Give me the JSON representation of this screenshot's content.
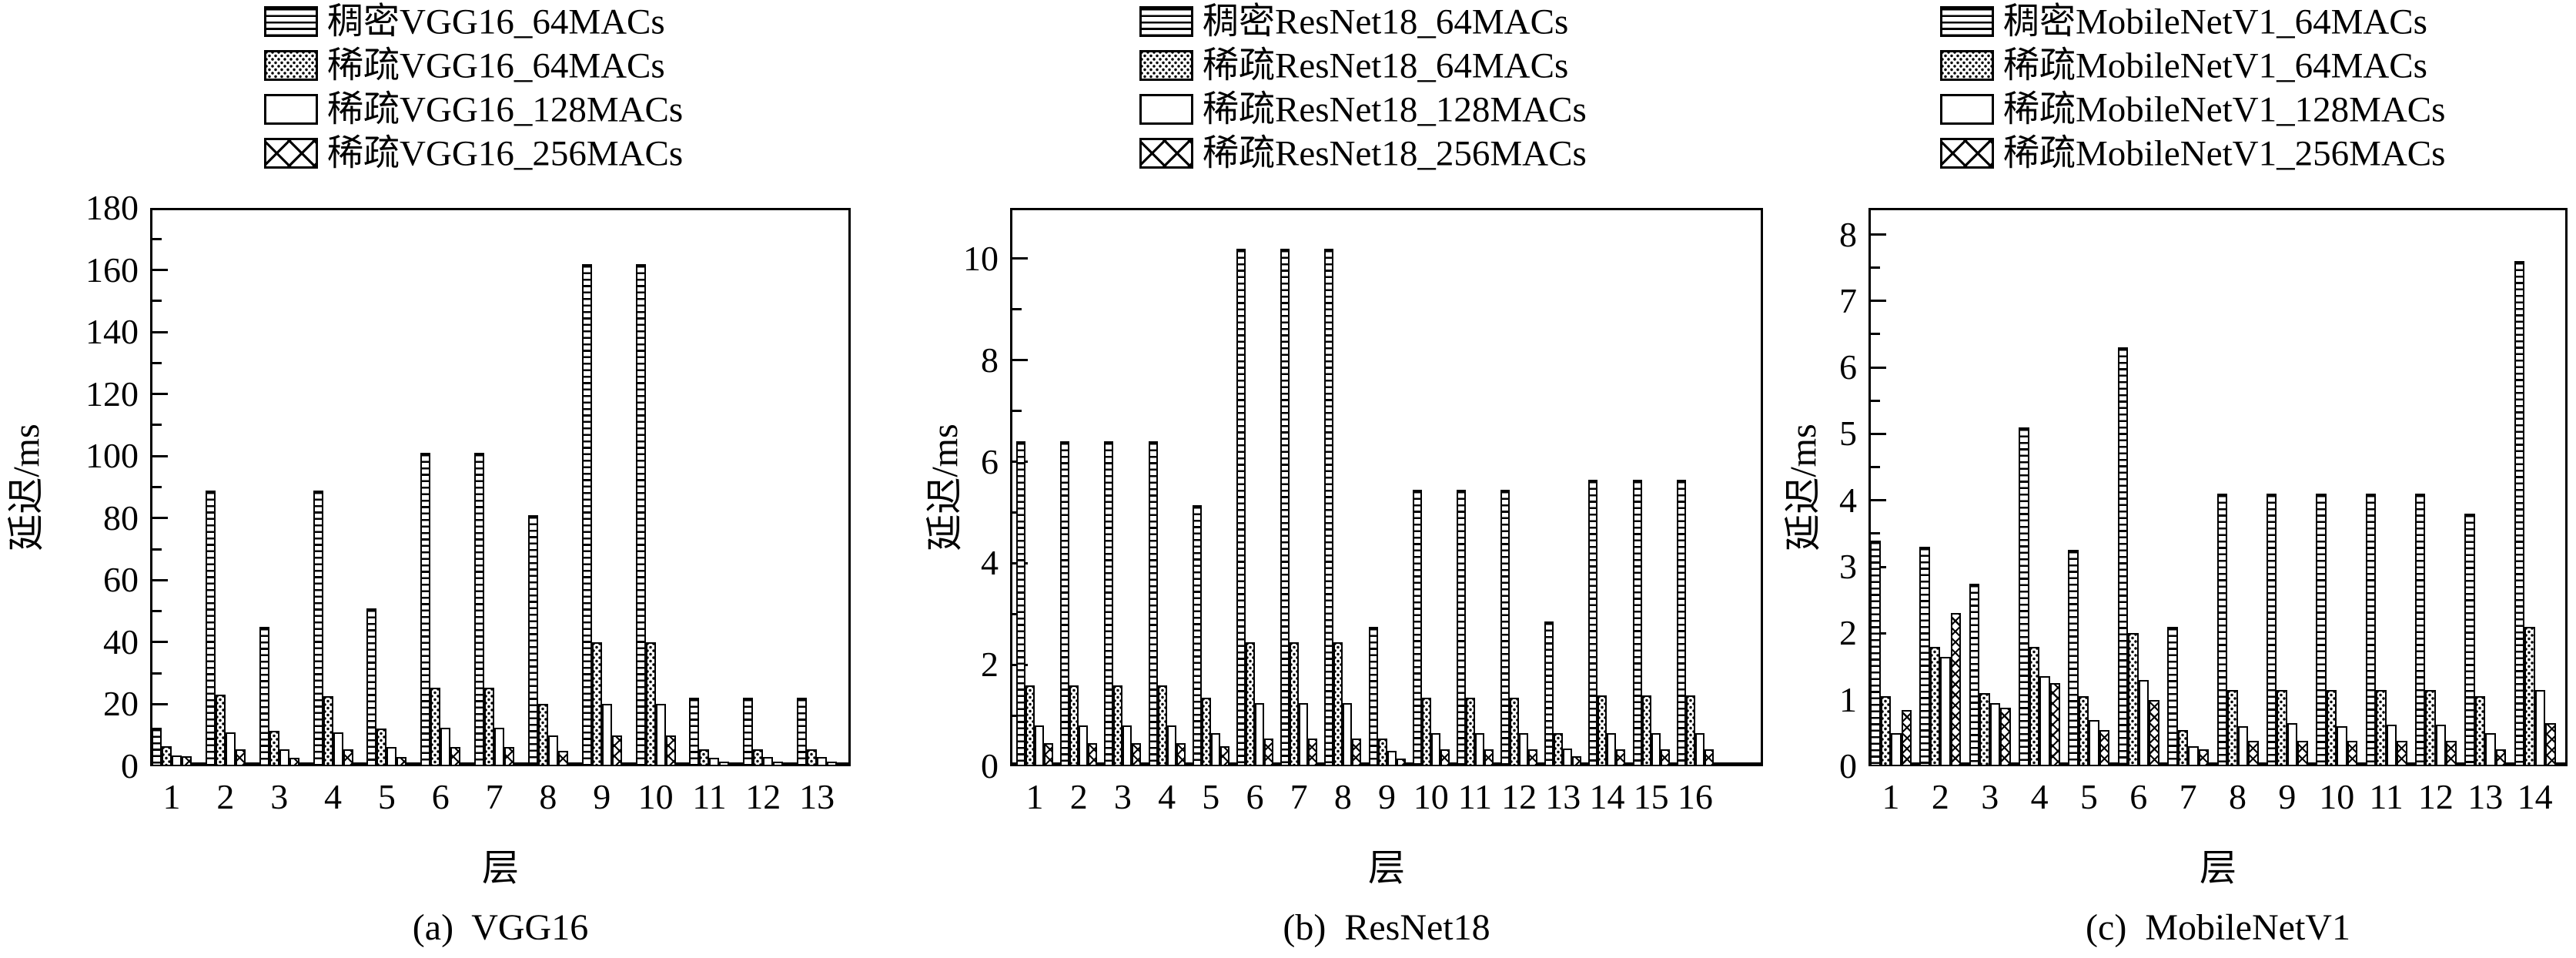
{
  "figure": {
    "background": "#ffffff",
    "bar_outline_color": "#000000",
    "text_color": "#000000"
  },
  "chart_data": [
    {
      "type": "bar",
      "panel_caption": "(a)  VGG16",
      "xlabel": "层",
      "ylabel": "延迟/ms",
      "ylim": [
        0,
        180
      ],
      "ytick_step": 20,
      "yminor_step": 10,
      "y_ticks": [
        "0",
        "20",
        "40",
        "60",
        "80",
        "100",
        "120",
        "140",
        "160",
        "180"
      ],
      "grid": false,
      "legend_position": "top",
      "categories": [
        "1",
        "2",
        "3",
        "4",
        "5",
        "6",
        "7",
        "8",
        "9",
        "10",
        "11",
        "12",
        "13"
      ],
      "series": [
        {
          "name": "稠密VGG16_64MACs",
          "pattern": "hlines",
          "values": [
            12.5,
            89,
            45,
            89,
            51,
            101,
            101,
            81,
            162,
            162,
            22,
            22,
            22
          ]
        },
        {
          "name": "稀疏VGG16_64MACs",
          "pattern": "dots",
          "values": [
            6.5,
            23,
            11.5,
            22.5,
            12.2,
            25.3,
            25.3,
            20,
            40,
            40,
            5.4,
            5.4,
            5.5
          ]
        },
        {
          "name": "稀疏VGG16_128MACs",
          "pattern": "plain",
          "values": [
            3.5,
            11,
            5.5,
            11,
            6.1,
            12.3,
            12.3,
            10,
            20,
            20,
            2.8,
            2.9,
            2.9
          ]
        },
        {
          "name": "稀疏VGG16_256MACs",
          "pattern": "cross",
          "values": [
            3.2,
            5.5,
            2.8,
            5.5,
            3.0,
            6.3,
            6.3,
            5,
            10,
            10,
            1.5,
            1.4,
            1.5
          ]
        }
      ]
    },
    {
      "type": "bar",
      "panel_caption": "(b)  ResNet18",
      "xlabel": "层",
      "ylabel": "延迟/ms",
      "ylim": [
        0,
        11
      ],
      "ytick_step": 2,
      "yminor_step": 1,
      "y_ticks": [
        "0",
        "2",
        "4",
        "6",
        "8",
        "10"
      ],
      "grid": false,
      "legend_position": "top",
      "categories": [
        "1",
        "2",
        "3",
        "4",
        "5",
        "6",
        "7",
        "8",
        "9",
        "10",
        "11",
        "12",
        "13",
        "14",
        "15",
        "16"
      ],
      "series": [
        {
          "name": "稠密ResNet18_64MACs",
          "pattern": "hlines",
          "values": [
            6.4,
            6.4,
            6.4,
            6.4,
            5.15,
            10.2,
            10.2,
            10.2,
            2.75,
            5.45,
            5.45,
            5.45,
            2.85,
            5.65,
            5.65,
            5.65
          ]
        },
        {
          "name": "稀疏ResNet18_64MACs",
          "pattern": "dots",
          "values": [
            1.6,
            1.6,
            1.6,
            1.6,
            1.35,
            2.45,
            2.45,
            2.45,
            0.55,
            1.35,
            1.35,
            1.35,
            0.65,
            1.4,
            1.4,
            1.4
          ]
        },
        {
          "name": "稀疏ResNet18_128MACs",
          "pattern": "plain",
          "values": [
            0.8,
            0.8,
            0.8,
            0.8,
            0.65,
            1.25,
            1.25,
            1.25,
            0.3,
            0.65,
            0.65,
            0.65,
            0.35,
            0.65,
            0.65,
            0.65
          ]
        },
        {
          "name": "稀疏ResNet18_256MACs",
          "pattern": "cross",
          "values": [
            0.45,
            0.45,
            0.45,
            0.45,
            0.4,
            0.55,
            0.55,
            0.55,
            0.15,
            0.33,
            0.33,
            0.33,
            0.2,
            0.33,
            0.33,
            0.33
          ]
        }
      ]
    },
    {
      "type": "bar",
      "panel_caption": "(c)  MobileNetV1",
      "xlabel": "层",
      "ylabel": "延迟/ms",
      "ylim": [
        0,
        8.4
      ],
      "ytick_step": 1,
      "yminor_step": 0.5,
      "y_ticks": [
        "0",
        "1",
        "2",
        "3",
        "4",
        "5",
        "6",
        "7",
        "8"
      ],
      "grid": false,
      "legend_position": "top",
      "categories": [
        "1",
        "2",
        "3",
        "4",
        "5",
        "6",
        "7",
        "8",
        "9",
        "10",
        "11",
        "12",
        "13",
        "14"
      ],
      "series": [
        {
          "name": "稠密MobileNetV1_64MACs",
          "pattern": "hlines",
          "values": [
            3.4,
            3.3,
            2.75,
            5.1,
            3.25,
            6.3,
            2.1,
            4.1,
            4.1,
            4.1,
            4.1,
            4.1,
            3.8,
            7.6
          ]
        },
        {
          "name": "稀疏MobileNetV1_64MACs",
          "pattern": "dots",
          "values": [
            1.05,
            1.8,
            1.1,
            1.8,
            1.05,
            2.0,
            0.55,
            1.15,
            1.15,
            1.15,
            1.15,
            1.15,
            1.05,
            2.1
          ]
        },
        {
          "name": "稀疏MobileNetV1_128MACs",
          "pattern": "plain",
          "values": [
            0.5,
            1.65,
            0.95,
            1.35,
            0.7,
            1.3,
            0.3,
            0.6,
            0.65,
            0.6,
            0.62,
            0.62,
            0.5,
            1.15
          ]
        },
        {
          "name": "稀疏MobileNetV1_256MACs",
          "pattern": "cross",
          "values": [
            0.85,
            2.3,
            0.88,
            1.25,
            0.55,
            1.0,
            0.25,
            0.38,
            0.38,
            0.38,
            0.38,
            0.38,
            0.25,
            0.65
          ]
        }
      ]
    }
  ]
}
